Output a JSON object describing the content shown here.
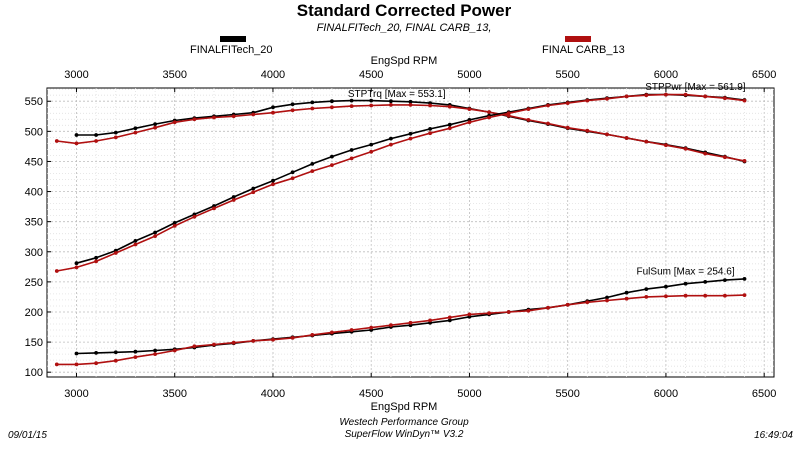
{
  "title": "Standard Corrected Power",
  "subtitle": "FINALFITech_20, FINAL CARB_13,",
  "footer": {
    "date": "09/01/15",
    "company": "Westech Performance Group",
    "software": "SuperFlow WinDyn™ V3.2",
    "time": "16:49:04"
  },
  "legend": [
    {
      "name": "FINALFITech_20",
      "color": "#000000"
    },
    {
      "name": "FINAL CARB_13",
      "color": "#b01010"
    }
  ],
  "chart_data": {
    "type": "line",
    "title": "Standard Corrected Power",
    "xlabel": "EngSpd RPM",
    "ylabel": "",
    "xlim": [
      2850,
      6550
    ],
    "ylim": [
      92,
      572
    ],
    "xticks": [
      3000,
      3500,
      4000,
      4500,
      5000,
      5500,
      6000,
      6500
    ],
    "yticks": [
      100,
      150,
      200,
      250,
      300,
      350,
      400,
      450,
      500,
      550
    ],
    "grid": true,
    "legend_position": "top",
    "annotations": [
      {
        "text": "STPTrq [Max = 553.1]",
        "x": 4630,
        "y": 557
      },
      {
        "text": "STPPwr [Max = 561.9]",
        "x": 6150,
        "y": 569
      },
      {
        "text": "FulSum [Max = 254.6]",
        "x": 6100,
        "y": 262
      }
    ],
    "series": [
      {
        "name": "FINALFITech_20 STPTrq",
        "group": 0,
        "color": "#000000",
        "x": [
          3000,
          3100,
          3200,
          3300,
          3400,
          3500,
          3600,
          3700,
          3800,
          3900,
          4000,
          4100,
          4200,
          4300,
          4400,
          4500,
          4600,
          4700,
          4800,
          4900,
          5000,
          5100,
          5200,
          5300,
          5400,
          5500,
          5600,
          5700,
          5800,
          5900,
          6000,
          6100,
          6200,
          6300,
          6400
        ],
        "y": [
          494,
          494,
          498,
          505,
          512,
          518,
          522,
          525,
          528,
          531,
          540,
          545,
          548,
          550,
          551,
          551,
          550,
          549,
          547,
          544,
          538,
          532,
          525,
          518,
          512,
          505,
          500,
          495,
          489,
          483,
          478,
          472,
          465,
          458,
          450
        ]
      },
      {
        "name": "FINAL CARB_13 STPTrq",
        "group": 1,
        "color": "#b01010",
        "x": [
          2900,
          3000,
          3100,
          3200,
          3300,
          3400,
          3500,
          3600,
          3700,
          3800,
          3900,
          4000,
          4100,
          4200,
          4300,
          4400,
          4500,
          4600,
          4700,
          4800,
          4900,
          5000,
          5100,
          5200,
          5300,
          5400,
          5500,
          5600,
          5700,
          5800,
          5900,
          6000,
          6100,
          6200,
          6300,
          6400
        ],
        "y": [
          484,
          480,
          484,
          490,
          498,
          506,
          515,
          520,
          523,
          525,
          528,
          531,
          535,
          538,
          540,
          542,
          543,
          544,
          544,
          543,
          541,
          537,
          532,
          526,
          519,
          513,
          506,
          501,
          495,
          489,
          483,
          477,
          471,
          463,
          457,
          451
        ]
      },
      {
        "name": "FINALFITech_20 STPPwr",
        "group": 0,
        "color": "#000000",
        "x": [
          3000,
          3100,
          3200,
          3300,
          3400,
          3500,
          3600,
          3700,
          3800,
          3900,
          4000,
          4100,
          4200,
          4300,
          4400,
          4500,
          4600,
          4700,
          4800,
          4900,
          5000,
          5100,
          5200,
          5300,
          5400,
          5500,
          5600,
          5700,
          5800,
          5900,
          6000,
          6100,
          6200,
          6300,
          6400
        ],
        "y": [
          281,
          290,
          302,
          318,
          332,
          348,
          362,
          376,
          391,
          405,
          418,
          432,
          446,
          458,
          469,
          478,
          488,
          496,
          504,
          511,
          519,
          526,
          532,
          538,
          544,
          548,
          552,
          555,
          558,
          561,
          561,
          560,
          558,
          556,
          552
        ]
      },
      {
        "name": "FINAL CARB_13 STPPwr",
        "group": 1,
        "color": "#b01010",
        "x": [
          2900,
          3000,
          3100,
          3200,
          3300,
          3400,
          3500,
          3600,
          3700,
          3800,
          3900,
          4000,
          4100,
          4200,
          4300,
          4400,
          4500,
          4600,
          4700,
          4800,
          4900,
          5000,
          5100,
          5200,
          5300,
          5400,
          5500,
          5600,
          5700,
          5800,
          5900,
          6000,
          6100,
          6200,
          6300,
          6400
        ],
        "y": [
          268,
          274,
          284,
          298,
          312,
          326,
          343,
          358,
          372,
          386,
          399,
          412,
          422,
          434,
          444,
          455,
          466,
          478,
          488,
          497,
          505,
          515,
          523,
          530,
          537,
          543,
          547,
          551,
          554,
          558,
          560,
          561,
          561,
          558,
          555,
          551
        ]
      },
      {
        "name": "FINALFITech_20 FulSum",
        "group": 0,
        "color": "#000000",
        "x": [
          3000,
          3100,
          3200,
          3300,
          3400,
          3500,
          3600,
          3700,
          3800,
          3900,
          4000,
          4100,
          4200,
          4300,
          4400,
          4500,
          4600,
          4700,
          4800,
          4900,
          5000,
          5100,
          5200,
          5300,
          5400,
          5500,
          5600,
          5700,
          5800,
          5900,
          6000,
          6100,
          6200,
          6300,
          6400
        ],
        "y": [
          131,
          132,
          133,
          134,
          136,
          138,
          141,
          145,
          148,
          152,
          155,
          158,
          161,
          164,
          167,
          170,
          175,
          178,
          182,
          186,
          192,
          196,
          200,
          204,
          207,
          212,
          218,
          224,
          232,
          238,
          242,
          247,
          250,
          253,
          255
        ]
      },
      {
        "name": "FINAL CARB_13 FulSum",
        "group": 1,
        "color": "#b01010",
        "x": [
          2900,
          3000,
          3100,
          3200,
          3300,
          3400,
          3500,
          3600,
          3700,
          3800,
          3900,
          4000,
          4100,
          4200,
          4300,
          4400,
          4500,
          4600,
          4700,
          4800,
          4900,
          5000,
          5100,
          5200,
          5300,
          5400,
          5500,
          5600,
          5700,
          5800,
          5900,
          6000,
          6100,
          6200,
          6300,
          6400
        ],
        "y": [
          113,
          113,
          115,
          119,
          125,
          130,
          136,
          143,
          146,
          149,
          152,
          154,
          157,
          162,
          166,
          170,
          174,
          178,
          182,
          186,
          191,
          196,
          198,
          200,
          202,
          207,
          212,
          216,
          219,
          222,
          225,
          226,
          227,
          227,
          227,
          228
        ]
      }
    ]
  }
}
